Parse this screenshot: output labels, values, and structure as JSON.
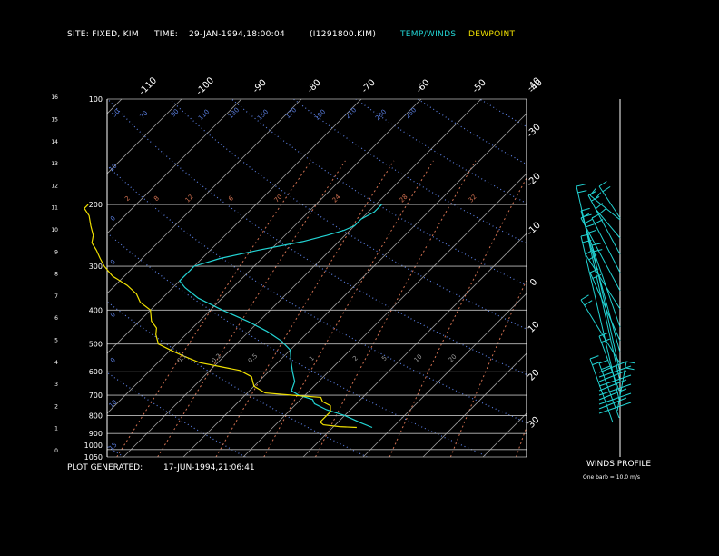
{
  "header": {
    "site": "SITE:   FIXED, KIM",
    "time": "TIME:",
    "datetime": "29-JAN-1994,18:00:04",
    "file": "(I1291800.KIM)",
    "temp_winds": "TEMP/WINDS",
    "dewpoint": "DEWPOINT"
  },
  "footer": {
    "plot_generated_label": "PLOT GENERATED:",
    "plot_generated_value": "17-JUN-1994,21:06:41",
    "winds_profile": "WINDS PROFILE",
    "barb_note": "One barb = 10.0 m/s"
  },
  "colors": {
    "background": "#000000",
    "text": "#ffffff",
    "temp": "#22d3d3",
    "dewpoint": "#f0e000",
    "isotherm": "#9a9a9a",
    "mixing_ratio": "#d07050",
    "dry_adiabat": "#5a7ee0",
    "isobar": "#bbbbbb"
  },
  "chart_data": {
    "type": "line",
    "title": "",
    "ylabel": "",
    "xlabel": "",
    "pressure_ticks": [
      "100",
      "200",
      "300",
      "400",
      "500",
      "600",
      "700",
      "800",
      "900",
      "1000",
      "1050"
    ],
    "height_ticks": [
      "0",
      "1",
      "2",
      "3",
      "4",
      "5",
      "6",
      "7",
      "8",
      "9",
      "10",
      "11",
      "12",
      "13",
      "14",
      "15",
      "16"
    ],
    "bottom_temp_ticks": [
      "30",
      "20",
      "10",
      "0",
      "-10",
      "-20",
      "-30",
      "-40"
    ],
    "top_temp_ticks": [
      "-110",
      "-100",
      "-90",
      "-80",
      "-70",
      "-60",
      "-50",
      "-40"
    ],
    "mixing_ratio_labels": [
      "0.1",
      "0.2",
      "0.5",
      "1",
      "2",
      "5",
      "10",
      "20"
    ],
    "upper_labels": [
      "2",
      "8",
      "12",
      "6",
      "70",
      "24",
      "28",
      "32"
    ],
    "theta_labels": [
      "50",
      "70",
      "90",
      "110",
      "130",
      "150",
      "170",
      "190",
      "210",
      "230",
      "250"
    ],
    "series": [
      {
        "name": "TEMP/WINDS",
        "points": [
          [
            -3.4,
            865
          ],
          [
            -6,
            840
          ],
          [
            -10,
            800
          ],
          [
            -14,
            770
          ],
          [
            -17,
            740
          ],
          [
            -18,
            720
          ],
          [
            -21,
            700
          ],
          [
            -23,
            680
          ],
          [
            -24,
            640
          ],
          [
            -26,
            600
          ],
          [
            -28,
            560
          ],
          [
            -30,
            520
          ],
          [
            -33,
            490
          ],
          [
            -37,
            460
          ],
          [
            -42,
            430
          ],
          [
            -48,
            400
          ],
          [
            -54,
            370
          ],
          [
            -58,
            345
          ],
          [
            -60,
            330
          ],
          [
            -60,
            315
          ],
          [
            -60,
            300
          ],
          [
            -57,
            285
          ],
          [
            -52,
            270
          ],
          [
            -46,
            255
          ],
          [
            -43,
            245
          ],
          [
            -41,
            237
          ],
          [
            -40,
            230
          ],
          [
            -40,
            220
          ],
          [
            -39,
            210
          ],
          [
            -39,
            200
          ]
        ]
      },
      {
        "name": "DEWPOINT",
        "points": [
          [
            -6,
            865
          ],
          [
            -9,
            860
          ],
          [
            -12,
            850
          ],
          [
            -13,
            835
          ],
          [
            -13,
            810
          ],
          [
            -13,
            780
          ],
          [
            -14,
            750
          ],
          [
            -16,
            730
          ],
          [
            -17,
            710
          ],
          [
            -22,
            700
          ],
          [
            -27,
            690
          ],
          [
            -30,
            660
          ],
          [
            -32,
            620
          ],
          [
            -35,
            595
          ],
          [
            -39,
            580
          ],
          [
            -43,
            565
          ],
          [
            -47,
            540
          ],
          [
            -50,
            520
          ],
          [
            -53,
            500
          ],
          [
            -55,
            470
          ],
          [
            -56,
            450
          ],
          [
            -58,
            430
          ],
          [
            -60,
            400
          ],
          [
            -63,
            380
          ],
          [
            -65,
            360
          ],
          [
            -68,
            340
          ],
          [
            -72,
            320
          ],
          [
            -75,
            300
          ],
          [
            -77,
            285
          ],
          [
            -79,
            270
          ],
          [
            -81,
            257
          ],
          [
            -82,
            245
          ],
          [
            -84,
            230
          ],
          [
            -86,
            215
          ],
          [
            -88,
            205
          ],
          [
            -88,
            200
          ]
        ]
      }
    ]
  }
}
